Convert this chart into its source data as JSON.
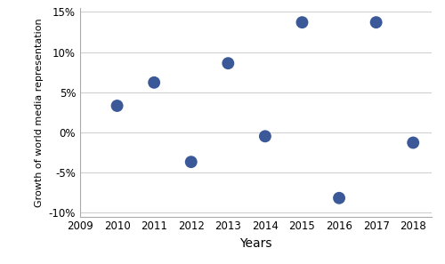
{
  "years": [
    2010,
    2011,
    2012,
    2013,
    2014,
    2015,
    2016,
    2017,
    2018
  ],
  "values": [
    0.033,
    0.062,
    -0.037,
    0.086,
    -0.005,
    0.137,
    -0.082,
    0.137,
    -0.013
  ],
  "marker_color": "#3B5998",
  "marker_size": 100,
  "xlabel": "Years",
  "ylabel": "Growth of world media representation",
  "xlim": [
    2009,
    2018.5
  ],
  "ylim": [
    -0.105,
    0.155
  ],
  "yticks": [
    -0.1,
    -0.05,
    0.0,
    0.05,
    0.1,
    0.15
  ],
  "xticks": [
    2009,
    2010,
    2011,
    2012,
    2013,
    2014,
    2015,
    2016,
    2017,
    2018
  ],
  "grid_color": "#D0D0D0",
  "background_color": "#FFFFFF",
  "spine_color": "#AAAAAA",
  "xlabel_fontsize": 10,
  "ylabel_fontsize": 8,
  "tick_fontsize": 8.5
}
